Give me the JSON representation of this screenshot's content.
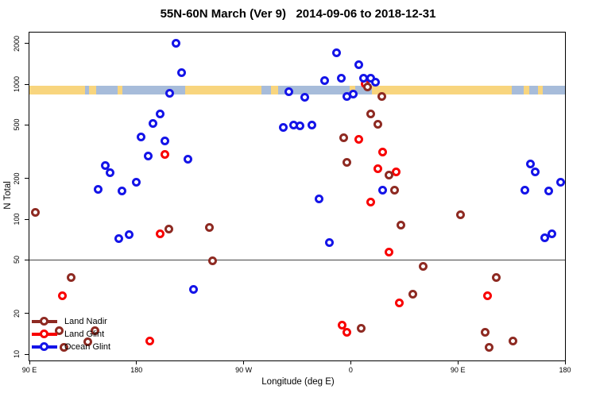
{
  "title": "55N-60N March (Ver 9)   2014-09-06 to 2018-12-31",
  "chart_data": {
    "type": "scatter",
    "title": "55N-60N March (Ver 9)   2014-09-06 to 2018-12-31",
    "xlabel": "Longitude (deg E)",
    "ylabel": "N Total",
    "x_axis": {
      "min": 90,
      "max": 540,
      "tick_positions": [
        90,
        180,
        270,
        360,
        450,
        540
      ],
      "tick_labels": [
        "90 E",
        "180",
        "90 W",
        "0",
        "90 E",
        "180"
      ]
    },
    "y_axis": {
      "scale": "log",
      "min": 9,
      "max": 2400,
      "ticks": [
        10,
        20,
        50,
        100,
        200,
        500,
        1000,
        2000
      ]
    },
    "reference_line_y": 50,
    "map_band": {
      "value_range": [
        840,
        970
      ],
      "land_color": "#F8D57E",
      "ocean_color": "#A7BCDA",
      "segments": [
        {
          "start": 90,
          "end": 137,
          "type": "land"
        },
        {
          "start": 137,
          "end": 140,
          "type": "ocean"
        },
        {
          "start": 140,
          "end": 146,
          "type": "land"
        },
        {
          "start": 146,
          "end": 164,
          "type": "ocean"
        },
        {
          "start": 164,
          "end": 168,
          "type": "land"
        },
        {
          "start": 168,
          "end": 221,
          "type": "ocean"
        },
        {
          "start": 221,
          "end": 285,
          "type": "land"
        },
        {
          "start": 285,
          "end": 293,
          "type": "ocean"
        },
        {
          "start": 293,
          "end": 299,
          "type": "land"
        },
        {
          "start": 299,
          "end": 359,
          "type": "ocean"
        },
        {
          "start": 359,
          "end": 364,
          "type": "land"
        },
        {
          "start": 364,
          "end": 378,
          "type": "ocean"
        },
        {
          "start": 378,
          "end": 495,
          "type": "land"
        },
        {
          "start": 495,
          "end": 505,
          "type": "ocean"
        },
        {
          "start": 505,
          "end": 510,
          "type": "land"
        },
        {
          "start": 510,
          "end": 517,
          "type": "ocean"
        },
        {
          "start": 517,
          "end": 521,
          "type": "land"
        },
        {
          "start": 521,
          "end": 540,
          "type": "ocean"
        }
      ]
    },
    "series": [
      {
        "name": "Land Glint",
        "color": "#F80000",
        "marker": "open-circle",
        "points": [
          [
            372,
            1010
          ],
          [
            367,
            392
          ],
          [
            387,
            316
          ],
          [
            383,
            238
          ],
          [
            398,
            225
          ],
          [
            377,
            133
          ],
          [
            392,
            57
          ],
          [
            204,
            303
          ],
          [
            200,
            78
          ],
          [
            401,
            24
          ],
          [
            353,
            16.5
          ],
          [
            357,
            14.5
          ],
          [
            191,
            12.5
          ],
          [
            118,
            27
          ],
          [
            475,
            27
          ]
        ]
      },
      {
        "name": "Land Nadir",
        "color": "#8E2A22",
        "marker": "open-circle",
        "points": [
          [
            95,
            112
          ],
          [
            374,
            950
          ],
          [
            386,
            815
          ],
          [
            377,
            605
          ],
          [
            383,
            508
          ],
          [
            354,
            400
          ],
          [
            357,
            265
          ],
          [
            392,
            213
          ],
          [
            397,
            165
          ],
          [
            402,
            90
          ],
          [
            452,
            108
          ],
          [
            207,
            85
          ],
          [
            241,
            87
          ],
          [
            244,
            49
          ],
          [
            421,
            45
          ],
          [
            412,
            28
          ],
          [
            369,
            15.5
          ],
          [
            125,
            37
          ],
          [
            115,
            15
          ],
          [
            145,
            15
          ],
          [
            139,
            12.3
          ],
          [
            119,
            11.3
          ],
          [
            482,
            37
          ],
          [
            473,
            14.5
          ],
          [
            476,
            11.3
          ],
          [
            496,
            12.5
          ]
        ]
      },
      {
        "name": "Ocean Glint",
        "color": "#1414E8",
        "marker": "open-circle",
        "points": [
          [
            213,
            2000
          ],
          [
            218,
            1210
          ],
          [
            348,
            1720
          ],
          [
            367,
            1390
          ],
          [
            338,
            1070
          ],
          [
            352,
            1115
          ],
          [
            371,
            1115
          ],
          [
            377,
            1115
          ],
          [
            381,
            1030
          ],
          [
            308,
            875
          ],
          [
            321,
            800
          ],
          [
            357,
            815
          ],
          [
            362,
            850
          ],
          [
            208,
            860
          ],
          [
            200,
            600
          ],
          [
            194,
            515
          ],
          [
            184,
            405
          ],
          [
            204,
            382
          ],
          [
            190,
            295
          ],
          [
            223,
            280
          ],
          [
            154,
            248
          ],
          [
            158,
            220
          ],
          [
            180,
            187
          ],
          [
            148,
            167
          ],
          [
            168,
            161
          ],
          [
            303,
            480
          ],
          [
            312,
            500
          ],
          [
            317,
            490
          ],
          [
            327,
            500
          ],
          [
            333,
            142
          ],
          [
            342,
            67
          ],
          [
            387,
            165
          ],
          [
            165,
            72
          ],
          [
            174,
            77
          ],
          [
            228,
            30
          ],
          [
            511,
            255
          ],
          [
            515,
            225
          ],
          [
            506,
            165
          ],
          [
            526,
            161
          ],
          [
            536,
            187
          ],
          [
            523,
            73
          ],
          [
            529,
            78
          ]
        ]
      }
    ],
    "legend": {
      "position": "bottom-left",
      "entries": [
        "Land Nadir",
        "Land Glint",
        "Ocean Glint"
      ]
    }
  }
}
